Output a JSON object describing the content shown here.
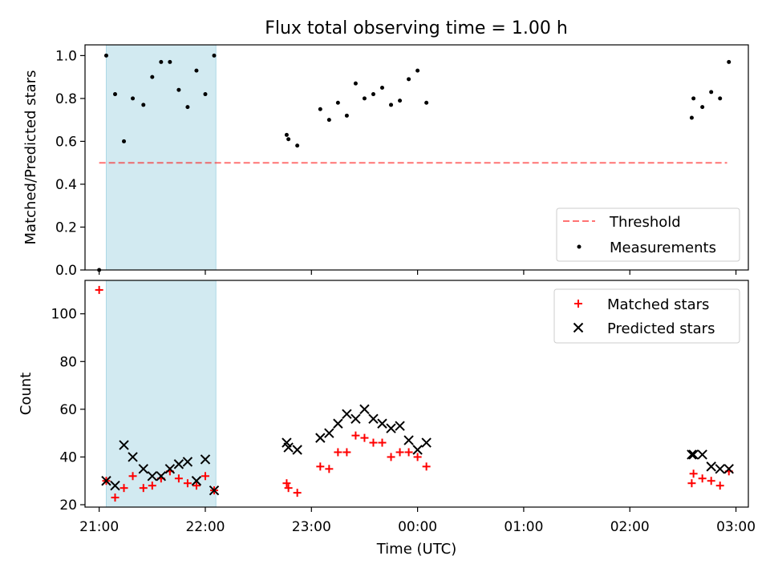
{
  "figure": {
    "title": "Flux total observing time = 1.00 h"
  },
  "colors": {
    "shade": "#add8e6",
    "threshold": "#ff0000",
    "measurement": "#000000",
    "matched": "#ff0000",
    "predicted": "#000000"
  },
  "chart_data": [
    {
      "type": "scatter",
      "ylabel": "Matched/Predicted stars",
      "ylim": [
        0,
        1.05
      ],
      "yticks": [
        "0.0",
        "0.2",
        "0.4",
        "0.6",
        "0.8",
        "1.0"
      ],
      "xlim": [
        "20:52",
        "03:07"
      ],
      "shaded_interval": [
        "21:04",
        "22:06"
      ],
      "legend": {
        "placement": "lower right",
        "entries": [
          "Threshold",
          "Measurements"
        ]
      },
      "threshold": {
        "name": "Threshold",
        "value": 0.5,
        "x_range": [
          "21:00",
          "02:55"
        ]
      },
      "series": [
        {
          "name": "Measurements",
          "points": [
            [
              "21:00",
              0.0
            ],
            [
              "21:04",
              1.0
            ],
            [
              "21:09",
              0.82
            ],
            [
              "21:14",
              0.6
            ],
            [
              "21:19",
              0.8
            ],
            [
              "21:25",
              0.77
            ],
            [
              "21:30",
              0.9
            ],
            [
              "21:35",
              0.97
            ],
            [
              "21:40",
              0.97
            ],
            [
              "21:45",
              0.84
            ],
            [
              "21:50",
              0.76
            ],
            [
              "21:55",
              0.93
            ],
            [
              "22:00",
              0.82
            ],
            [
              "22:05",
              1.0
            ],
            [
              "22:46",
              0.63
            ],
            [
              "22:47",
              0.61
            ],
            [
              "22:52",
              0.58
            ],
            [
              "23:05",
              0.75
            ],
            [
              "23:10",
              0.7
            ],
            [
              "23:15",
              0.78
            ],
            [
              "23:20",
              0.72
            ],
            [
              "23:25",
              0.87
            ],
            [
              "23:30",
              0.8
            ],
            [
              "23:35",
              0.82
            ],
            [
              "23:40",
              0.85
            ],
            [
              "23:45",
              0.77
            ],
            [
              "23:50",
              0.79
            ],
            [
              "23:55",
              0.89
            ],
            [
              "00:00",
              0.93
            ],
            [
              "00:05",
              0.78
            ],
            [
              "02:35",
              0.71
            ],
            [
              "02:36",
              0.8
            ],
            [
              "02:41",
              0.76
            ],
            [
              "02:46",
              0.83
            ],
            [
              "02:51",
              0.8
            ],
            [
              "02:56",
              0.97
            ]
          ]
        }
      ]
    },
    {
      "type": "scatter",
      "xlabel": "Time (UTC)",
      "ylabel": "Count",
      "ylim": [
        19,
        114
      ],
      "yticks": [
        "20",
        "40",
        "60",
        "80",
        "100"
      ],
      "xlim": [
        "20:52",
        "03:07"
      ],
      "xticks": [
        "21:00",
        "22:00",
        "23:00",
        "00:00",
        "01:00",
        "02:00",
        "03:00"
      ],
      "shaded_interval": [
        "21:04",
        "22:06"
      ],
      "legend": {
        "placement": "upper right",
        "entries": [
          "Matched stars",
          "Predicted stars"
        ]
      },
      "series": [
        {
          "name": "Matched stars",
          "marker": "+",
          "points": [
            [
              "21:00",
              110
            ],
            [
              "21:04",
              30
            ],
            [
              "21:09",
              23
            ],
            [
              "21:14",
              27
            ],
            [
              "21:19",
              32
            ],
            [
              "21:25",
              27
            ],
            [
              "21:30",
              28
            ],
            [
              "21:35",
              31
            ],
            [
              "21:40",
              34
            ],
            [
              "21:45",
              31
            ],
            [
              "21:50",
              29
            ],
            [
              "21:55",
              28
            ],
            [
              "22:00",
              32
            ],
            [
              "22:05",
              26
            ],
            [
              "22:46",
              29
            ],
            [
              "22:47",
              27
            ],
            [
              "22:52",
              25
            ],
            [
              "23:05",
              36
            ],
            [
              "23:10",
              35
            ],
            [
              "23:15",
              42
            ],
            [
              "23:20",
              42
            ],
            [
              "23:25",
              49
            ],
            [
              "23:30",
              48
            ],
            [
              "23:35",
              46
            ],
            [
              "23:40",
              46
            ],
            [
              "23:45",
              40
            ],
            [
              "23:50",
              42
            ],
            [
              "23:55",
              42
            ],
            [
              "00:00",
              40
            ],
            [
              "00:05",
              36
            ],
            [
              "02:35",
              29
            ],
            [
              "02:36",
              33
            ],
            [
              "02:41",
              31
            ],
            [
              "02:46",
              30
            ],
            [
              "02:51",
              28
            ],
            [
              "02:56",
              34
            ]
          ]
        },
        {
          "name": "Predicted stars",
          "marker": "x",
          "points": [
            [
              "21:04",
              30
            ],
            [
              "21:09",
              28
            ],
            [
              "21:14",
              45
            ],
            [
              "21:19",
              40
            ],
            [
              "21:25",
              35
            ],
            [
              "21:30",
              32
            ],
            [
              "21:35",
              32
            ],
            [
              "21:40",
              35
            ],
            [
              "21:45",
              37
            ],
            [
              "21:50",
              38
            ],
            [
              "21:55",
              30
            ],
            [
              "22:00",
              39
            ],
            [
              "22:05",
              26
            ],
            [
              "22:46",
              46
            ],
            [
              "22:47",
              44
            ],
            [
              "22:52",
              43
            ],
            [
              "23:05",
              48
            ],
            [
              "23:10",
              50
            ],
            [
              "23:15",
              54
            ],
            [
              "23:20",
              58
            ],
            [
              "23:25",
              56
            ],
            [
              "23:30",
              60
            ],
            [
              "23:35",
              56
            ],
            [
              "23:40",
              54
            ],
            [
              "23:45",
              52
            ],
            [
              "23:50",
              53
            ],
            [
              "23:55",
              47
            ],
            [
              "00:00",
              43
            ],
            [
              "00:05",
              46
            ],
            [
              "02:35",
              41
            ],
            [
              "02:36",
              41
            ],
            [
              "02:41",
              41
            ],
            [
              "02:46",
              36
            ],
            [
              "02:51",
              35
            ],
            [
              "02:56",
              35
            ]
          ]
        }
      ]
    }
  ]
}
